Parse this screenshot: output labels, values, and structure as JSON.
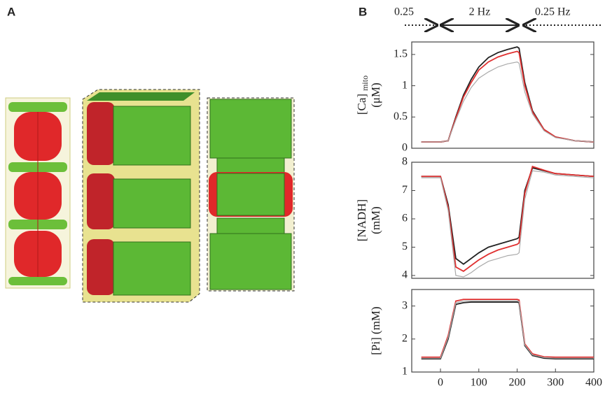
{
  "panels": [
    "A",
    "B"
  ],
  "protocol": [
    "0.25",
    "2 Hz",
    "0.25 Hz"
  ],
  "chart_data": [
    {
      "type": "line",
      "ylabel": [
        "[Ca]",
        "(μM)"
      ],
      "ylabel_sub": "mito",
      "x": [
        -50,
        0,
        20,
        40,
        60,
        80,
        100,
        125,
        150,
        175,
        200,
        205,
        220,
        240,
        270,
        300,
        350,
        400
      ],
      "xlim": [
        -75,
        400
      ],
      "ylim": [
        0,
        1.7
      ],
      "yticks": [
        0,
        0.5,
        1,
        1.5
      ],
      "series": [
        {
          "color": "#222222",
          "values": [
            0.1,
            0.1,
            0.12,
            0.5,
            0.85,
            1.1,
            1.3,
            1.45,
            1.53,
            1.58,
            1.62,
            1.6,
            1.05,
            0.6,
            0.3,
            0.18,
            0.12,
            0.1
          ]
        },
        {
          "color": "#e03030",
          "values": [
            0.1,
            0.1,
            0.12,
            0.48,
            0.82,
            1.05,
            1.25,
            1.38,
            1.46,
            1.51,
            1.55,
            1.53,
            1.0,
            0.58,
            0.3,
            0.18,
            0.12,
            0.1
          ]
        },
        {
          "color": "#aaaaaa",
          "values": [
            0.1,
            0.1,
            0.12,
            0.45,
            0.75,
            0.97,
            1.12,
            1.22,
            1.3,
            1.35,
            1.38,
            1.36,
            0.9,
            0.55,
            0.28,
            0.17,
            0.12,
            0.1
          ]
        }
      ]
    },
    {
      "type": "line",
      "ylabel": [
        "[NADH]",
        "(mM)"
      ],
      "x": [
        -50,
        0,
        20,
        40,
        60,
        80,
        100,
        125,
        150,
        175,
        200,
        205,
        220,
        240,
        270,
        300,
        350,
        400
      ],
      "xlim": [
        -75,
        400
      ],
      "ylim": [
        3.9,
        8
      ],
      "yticks": [
        4,
        5,
        6,
        7,
        8
      ],
      "series": [
        {
          "color": "#222222",
          "values": [
            7.5,
            7.5,
            6.5,
            4.6,
            4.4,
            4.6,
            4.8,
            5.0,
            5.1,
            5.2,
            5.3,
            5.35,
            7.0,
            7.8,
            7.7,
            7.6,
            7.55,
            7.5
          ]
        },
        {
          "color": "#e03030",
          "values": [
            7.5,
            7.5,
            6.4,
            4.3,
            4.15,
            4.35,
            4.55,
            4.75,
            4.9,
            5.0,
            5.1,
            5.15,
            6.9,
            7.85,
            7.72,
            7.6,
            7.55,
            7.5
          ]
        },
        {
          "color": "#aaaaaa",
          "values": [
            7.45,
            7.45,
            6.3,
            4.0,
            3.95,
            4.1,
            4.3,
            4.5,
            4.6,
            4.7,
            4.75,
            4.8,
            6.7,
            7.7,
            7.65,
            7.55,
            7.5,
            7.45
          ]
        }
      ]
    },
    {
      "type": "line",
      "ylabel": [
        "[Pi] (mM)"
      ],
      "x": [
        -50,
        0,
        20,
        40,
        60,
        80,
        100,
        125,
        150,
        175,
        200,
        205,
        220,
        240,
        270,
        300,
        350,
        400
      ],
      "xlim": [
        -75,
        400
      ],
      "ylim": [
        1,
        3.5
      ],
      "yticks": [
        1,
        2,
        3
      ],
      "xticks": [
        0,
        100,
        200,
        300,
        400
      ],
      "series": [
        {
          "color": "#222222",
          "values": [
            1.4,
            1.4,
            2.0,
            3.05,
            3.1,
            3.12,
            3.12,
            3.12,
            3.12,
            3.12,
            3.12,
            3.1,
            1.8,
            1.5,
            1.42,
            1.4,
            1.4,
            1.4
          ]
        },
        {
          "color": "#e03030",
          "values": [
            1.45,
            1.45,
            2.1,
            3.15,
            3.2,
            3.2,
            3.2,
            3.2,
            3.2,
            3.2,
            3.2,
            3.18,
            1.85,
            1.55,
            1.46,
            1.45,
            1.45,
            1.45
          ]
        },
        {
          "color": "#aaaaaa",
          "values": [
            1.42,
            1.42,
            2.05,
            3.1,
            3.15,
            3.16,
            3.16,
            3.16,
            3.16,
            3.16,
            3.16,
            3.14,
            1.82,
            1.52,
            1.44,
            1.42,
            1.42,
            1.42
          ]
        }
      ]
    }
  ]
}
